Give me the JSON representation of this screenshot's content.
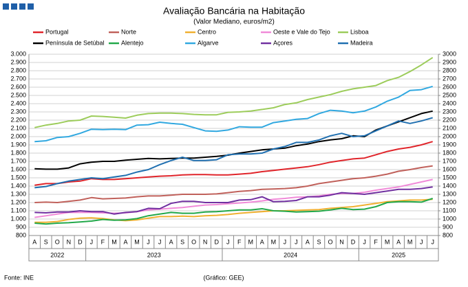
{
  "chart_data": {
    "type": "line",
    "title": "Avaliação Bancária na Habitação",
    "subtitle": "(Valor Mediano, euros/m2)",
    "source": "Fonte: INE",
    "credit": "(Gráfico: GEE)",
    "categories": [
      "A",
      "S",
      "O",
      "N",
      "D",
      "J",
      "F",
      "M",
      "A",
      "M",
      "J",
      "J",
      "A",
      "S",
      "O",
      "N",
      "D",
      "J",
      "F",
      "M",
      "A",
      "M",
      "J",
      "J",
      "A",
      "S",
      "O",
      "N",
      "D",
      "J",
      "F",
      "M",
      "A",
      "M",
      "J",
      "J"
    ],
    "years": [
      "2022",
      "2023",
      "2024",
      "2025"
    ],
    "ylim": [
      800,
      3000
    ],
    "yticks": [
      {
        "value": 3000,
        "label": "3.000"
      },
      {
        "value": 2900,
        "label": "2.900"
      },
      {
        "value": 2800,
        "label": "2.800"
      },
      {
        "value": 2700,
        "label": "2.700"
      },
      {
        "value": 2600,
        "label": "2.600"
      },
      {
        "value": 2500,
        "label": "2.500"
      },
      {
        "value": 2400,
        "label": "2.400"
      },
      {
        "value": 2300,
        "label": "2.300"
      },
      {
        "value": 2200,
        "label": "2.200"
      },
      {
        "value": 2100,
        "label": "2.100"
      },
      {
        "value": 2000,
        "label": "2.000"
      },
      {
        "value": 1900,
        "label": "1.900"
      },
      {
        "value": 1800,
        "label": "1.800"
      },
      {
        "value": 1700,
        "label": "1.700"
      },
      {
        "value": 1600,
        "label": "1.600"
      },
      {
        "value": 1500,
        "label": "1.500"
      },
      {
        "value": 1400,
        "label": "1.400"
      },
      {
        "value": 1300,
        "label": "1.300"
      },
      {
        "value": 1200,
        "label": "1.200"
      },
      {
        "value": 1100,
        "label": "1.100"
      },
      {
        "value": 1000,
        "label": "1.000"
      },
      900,
      800
    ],
    "y2lim": [
      800,
      3000
    ],
    "y2ticks": [
      3000,
      2900,
      2800,
      2700,
      2600,
      2500,
      2400,
      2300,
      2200,
      2100,
      2000,
      1900,
      1800,
      1700,
      1600,
      1500,
      1400,
      1300,
      1200,
      1100,
      1000,
      900,
      800
    ],
    "grid": true,
    "series": [
      {
        "name": "Portugal",
        "color": "#e0242a",
        "values": [
          1410,
          1430,
          1430,
          1450,
          1460,
          1490,
          1480,
          1480,
          1490,
          1500,
          1510,
          1520,
          1525,
          1535,
          1540,
          1540,
          1535,
          1535,
          1545,
          1555,
          1575,
          1590,
          1605,
          1620,
          1635,
          1660,
          1690,
          1710,
          1730,
          1740,
          1780,
          1820,
          1850,
          1870,
          1900,
          1940
        ]
      },
      {
        "name": "Norte",
        "color": "#c0605a",
        "values": [
          1200,
          1205,
          1200,
          1215,
          1230,
          1260,
          1245,
          1250,
          1255,
          1270,
          1280,
          1280,
          1290,
          1300,
          1300,
          1300,
          1305,
          1320,
          1335,
          1345,
          1360,
          1365,
          1370,
          1380,
          1400,
          1430,
          1450,
          1470,
          1490,
          1500,
          1520,
          1545,
          1580,
          1600,
          1625,
          1645
        ]
      },
      {
        "name": "Centro",
        "color": "#f0b030",
        "values": [
          960,
          960,
          970,
          995,
          1010,
          1015,
          1005,
          990,
          980,
          990,
          1010,
          1030,
          1030,
          1035,
          1030,
          1040,
          1045,
          1055,
          1070,
          1080,
          1090,
          1100,
          1100,
          1105,
          1110,
          1115,
          1130,
          1140,
          1150,
          1170,
          1190,
          1210,
          1220,
          1230,
          1230,
          1240
        ]
      },
      {
        "name": "Oeste e Vale do Tejo",
        "color": "#f08ad8",
        "values": [
          1020,
          1040,
          1060,
          1080,
          1080,
          1080,
          1075,
          1070,
          1075,
          1090,
          1110,
          1120,
          1130,
          1140,
          1155,
          1170,
          1175,
          1185,
          1195,
          1205,
          1220,
          1240,
          1250,
          1265,
          1270,
          1280,
          1300,
          1310,
          1310,
          1325,
          1350,
          1370,
          1390,
          1420,
          1450,
          1480
        ]
      },
      {
        "name": "Lisboa",
        "color": "#9ccc5a",
        "values": [
          2110,
          2140,
          2160,
          2190,
          2200,
          2250,
          2245,
          2235,
          2225,
          2260,
          2280,
          2285,
          2285,
          2280,
          2270,
          2265,
          2265,
          2295,
          2300,
          2310,
          2330,
          2350,
          2390,
          2410,
          2450,
          2480,
          2510,
          2550,
          2580,
          2600,
          2620,
          2680,
          2720,
          2790,
          2870,
          2960
        ]
      },
      {
        "name": "Península de Setúbal",
        "color": "#000000",
        "values": [
          1610,
          1605,
          1605,
          1620,
          1670,
          1690,
          1700,
          1700,
          1715,
          1725,
          1735,
          1730,
          1735,
          1740,
          1740,
          1750,
          1760,
          1775,
          1800,
          1820,
          1840,
          1850,
          1860,
          1890,
          1910,
          1940,
          1960,
          1975,
          2010,
          2000,
          2080,
          2130,
          2180,
          2230,
          2280,
          2310
        ]
      },
      {
        "name": "Alentejo",
        "color": "#22a84a",
        "values": [
          950,
          940,
          950,
          955,
          965,
          975,
          995,
          985,
          990,
          1005,
          1040,
          1060,
          1080,
          1070,
          1070,
          1085,
          1090,
          1100,
          1110,
          1110,
          1125,
          1100,
          1095,
          1085,
          1090,
          1095,
          1110,
          1130,
          1115,
          1120,
          1150,
          1200,
          1210,
          1210,
          1205,
          1250
        ]
      },
      {
        "name": "Algarve",
        "color": "#30a8e0",
        "values": [
          1940,
          1950,
          1990,
          2000,
          2040,
          2090,
          2085,
          2090,
          2085,
          2140,
          2145,
          2175,
          2160,
          2150,
          2110,
          2070,
          2065,
          2080,
          2120,
          2115,
          2115,
          2170,
          2190,
          2210,
          2220,
          2280,
          2320,
          2310,
          2290,
          2310,
          2360,
          2430,
          2480,
          2560,
          2570,
          2610
        ]
      },
      {
        "name": "Açores",
        "color": "#7030a0",
        "values": [
          1080,
          1075,
          1085,
          1085,
          1100,
          1090,
          1090,
          1060,
          1080,
          1090,
          1130,
          1125,
          1190,
          1215,
          1215,
          1200,
          1200,
          1200,
          1230,
          1235,
          1270,
          1210,
          1215,
          1225,
          1270,
          1270,
          1290,
          1320,
          1310,
          1300,
          1320,
          1340,
          1360,
          1360,
          1370,
          1390
        ]
      },
      {
        "name": "Madeira",
        "color": "#1f6fb0",
        "values": [
          1380,
          1395,
          1430,
          1460,
          1480,
          1500,
          1490,
          1510,
          1530,
          1570,
          1600,
          1660,
          1710,
          1750,
          1710,
          1710,
          1720,
          1780,
          1790,
          1790,
          1800,
          1850,
          1880,
          1930,
          1930,
          1960,
          2010,
          2040,
          2000,
          2010,
          2070,
          2130,
          2190,
          2160,
          2190,
          2230
        ]
      }
    ]
  }
}
